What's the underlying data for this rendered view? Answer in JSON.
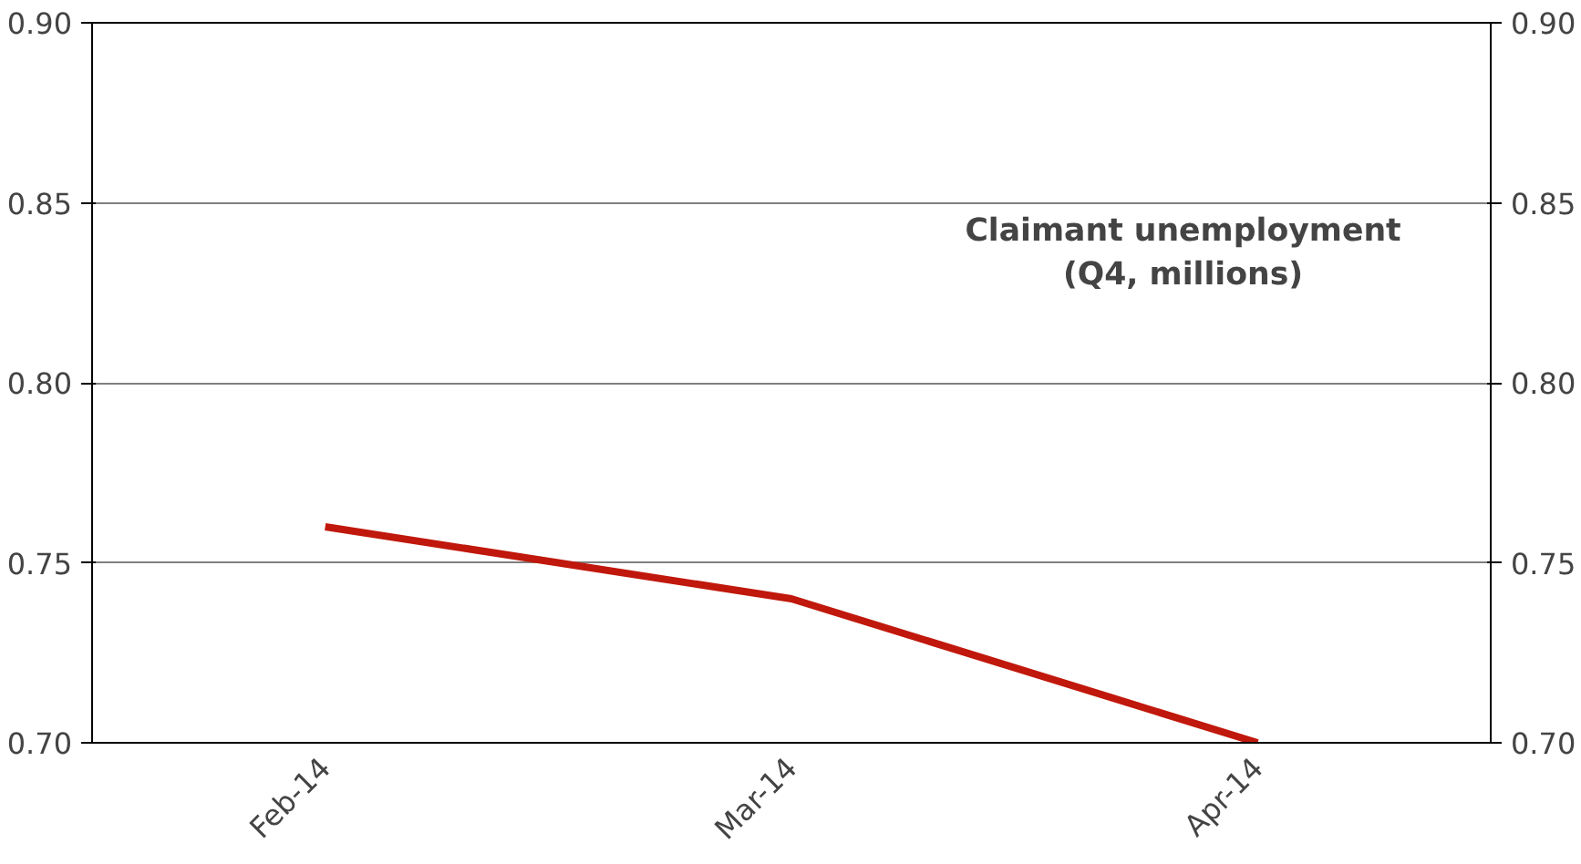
{
  "chart_data": {
    "type": "line",
    "title": "Claimant unemployment\n(Q4, millions)",
    "categories": [
      "Feb-14",
      "Mar-14",
      "Apr-14"
    ],
    "series": [
      {
        "color": "#c0180c",
        "values": [
          0.76,
          0.74,
          0.7
        ]
      }
    ],
    "ylim": [
      0.7,
      0.9
    ],
    "yticks": [
      {
        "value": 0.7,
        "label": "0.70"
      },
      {
        "value": 0.75,
        "label": "0.75"
      },
      {
        "value": 0.8,
        "label": "0.80"
      },
      {
        "value": 0.85,
        "label": "0.85"
      },
      {
        "value": 0.9,
        "label": "0.90"
      }
    ],
    "y2lim": [
      0.7,
      0.9
    ],
    "y2ticks": [
      {
        "value": 0.7,
        "label": "0.70"
      },
      {
        "value": 0.75,
        "label": "0.75"
      },
      {
        "value": 0.8,
        "label": "0.80"
      },
      {
        "value": 0.85,
        "label": "0.85"
      },
      {
        "value": 0.9,
        "label": "0.90"
      }
    ],
    "grid": "y",
    "marker": "none",
    "line_style": "solid"
  }
}
